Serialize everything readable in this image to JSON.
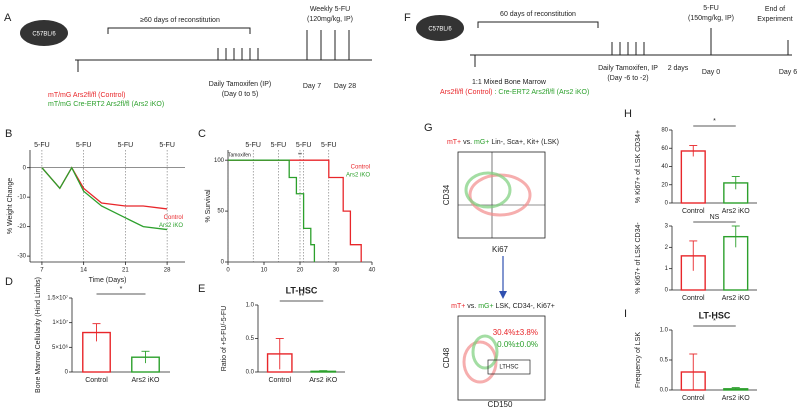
{
  "diagrams": {
    "A": {
      "letter": "A",
      "mouse": "C57BL/6",
      "reconstitution": "≥60 days of reconstitution",
      "fu_title": "Weekly 5-FU",
      "fu_dose": "(120mg/kg, IP)",
      "tamoxifen": "Daily Tamoxifen (IP)",
      "tamoxifen_days": "(Day 0 to 5)",
      "day_a": "Day 7",
      "day_b": "Day 28",
      "control": "mT/mG Ars2fl/fl (Control)",
      "ko": "mT/mG Cre-ERT2 Ars2fl/fl (Ars2 iKO)"
    },
    "F": {
      "letter": "F",
      "mouse": "C57BL/6",
      "reconstitution": "60 days of reconstitution",
      "fu_title": "5-FU",
      "fu_dose": "(150mg/kg, IP)",
      "end_a": "End of",
      "end_b": "Experiment",
      "interval": "2 days",
      "mix": "1:1 Mixed  Bone Marrow",
      "tamoxifen": "Daily Tamoxifen, IP",
      "tamoxifen_days": "(Day -6 to -2)",
      "day_a": "Day 0",
      "day_b": "Day 6",
      "control": "Ars2fl/fl (Control)",
      "ko": ": Cre-ERT2 Ars2fl/fl (Ars2 iKO)"
    },
    "G": {
      "letter": "G",
      "top_a": "mT+",
      "top_b": " vs. ",
      "top_c": "mG+",
      "top_d": " Lin-, Sca+, Kit+ (LSK)",
      "top_y": "CD34",
      "top_x": "Ki67",
      "bottom_a": "mT+",
      "bottom_b": " vs. ",
      "bottom_c": "mG+",
      "bottom_d": " LSK, CD34-, Ki67+",
      "gate": "LTHSC",
      "stat_control": "30.4%±3.8%",
      "stat_ko": "0.0%±0.0%",
      "bottom_y": "CD48",
      "bottom_x": "CD150"
    }
  },
  "chart_data": [
    {
      "type": "line",
      "panel": "B",
      "y_label": "% Weight Change",
      "x_label": "Time (Days)",
      "xlim": [
        5,
        31
      ],
      "xticks": [
        7,
        14,
        21,
        28
      ],
      "ylim": [
        -32,
        6
      ],
      "yticks": [
        0,
        -10,
        -20,
        -30
      ],
      "annotations": [
        {
          "text": "5-FU",
          "x": 7
        },
        {
          "text": "5-FU",
          "x": 14
        },
        {
          "text": "5-FU",
          "x": 21
        },
        {
          "text": "5-FU",
          "x": 28
        }
      ],
      "series": [
        {
          "name": "Control",
          "color": "#e8262a",
          "x": [
            7,
            10,
            12,
            14,
            17,
            21,
            24,
            28
          ],
          "values": [
            0,
            -7,
            0,
            -7,
            -12,
            -13,
            -13,
            -14
          ]
        },
        {
          "name": "Ars2 iKO",
          "color": "#2ca02c",
          "x": [
            7,
            10,
            12,
            14,
            17,
            21,
            24,
            28
          ],
          "values": [
            0,
            -7,
            0,
            -8,
            -13,
            -17,
            -20,
            -21
          ]
        }
      ]
    },
    {
      "type": "line",
      "panel": "C",
      "y_label": "% Survival",
      "xlim": [
        0,
        40
      ],
      "xticks": [
        0,
        10,
        20,
        30,
        40
      ],
      "ylim": [
        0,
        110
      ],
      "yticks": [
        0,
        50,
        100
      ],
      "annotations": [
        {
          "text": "5-FU",
          "x": 7
        },
        {
          "text": "5-FU",
          "x": 14
        },
        {
          "text": "5-FU",
          "x": 21
        },
        {
          "text": "5-FU",
          "x": 28
        },
        {
          "text": "Tamoxifen",
          "x": 0
        },
        {
          "text": "**",
          "x": 20
        }
      ],
      "series": [
        {
          "name": "Control",
          "color": "#e8262a",
          "x": [
            0,
            28,
            28,
            32,
            32,
            34,
            34,
            37,
            37
          ],
          "values": [
            100,
            100,
            83,
            83,
            50,
            50,
            17,
            17,
            0
          ]
        },
        {
          "name": "Ars2 iKO",
          "color": "#2ca02c",
          "x": [
            0,
            17,
            17,
            19,
            19,
            21,
            21,
            23,
            23,
            24,
            24
          ],
          "values": [
            100,
            100,
            83,
            83,
            67,
            67,
            33,
            33,
            17,
            17,
            0
          ]
        }
      ]
    },
    {
      "type": "bar",
      "panel": "D",
      "y_label": "Bone Marrow Cellularity (Hind Limbs)",
      "categories": [
        "Control",
        "Ars2 iKO"
      ],
      "values": [
        8000000,
        3000000
      ],
      "errors": [
        1800000,
        1200000
      ],
      "colors": [
        "#e8262a",
        "#2ca02c"
      ],
      "annotation": "*",
      "ylim": [
        0,
        15000000
      ],
      "yticks": [
        {
          "value": 0,
          "label": "0"
        },
        {
          "value": 5000000,
          "label": "5×10⁶"
        },
        {
          "value": 10000000,
          "label": "1×10⁷"
        },
        {
          "value": 15000000,
          "label": "1.5×10⁷"
        }
      ]
    },
    {
      "type": "bar",
      "panel": "E",
      "title": "LT-HSC",
      "y_label": "Ratio of +5-FU/-5-FU",
      "categories": [
        "Control",
        "Ars2 iKO"
      ],
      "values": [
        0.27,
        0.01
      ],
      "errors": [
        0.23,
        0.01
      ],
      "colors": [
        "#e8262a",
        "#2ca02c"
      ],
      "annotation": "**",
      "ylim": [
        0,
        1
      ],
      "yticks": [
        {
          "value": 0,
          "label": "0.0"
        },
        0.5,
        {
          "value": 1,
          "label": "1.0"
        }
      ]
    },
    {
      "type": "bar",
      "panel": "H",
      "y_label": "% Ki67+ of LSK CD34+",
      "categories": [
        "Control",
        "Ars2 iKO"
      ],
      "values": [
        57,
        22
      ],
      "errors": [
        6,
        7
      ],
      "colors": [
        "#e8262a",
        "#2ca02c"
      ],
      "annotation": "*",
      "ylim": [
        0,
        80
      ],
      "yticks": [
        0,
        20,
        40,
        60,
        80
      ]
    },
    {
      "type": "bar",
      "y_label": "% Ki67+ of LSK CD34-",
      "categories": [
        "Control",
        "Ars2 iKO"
      ],
      "values": [
        1.6,
        2.5
      ],
      "errors": [
        0.7,
        0.5
      ],
      "colors": [
        "#e8262a",
        "#2ca02c"
      ],
      "annotation": "NS",
      "ylim": [
        0,
        3
      ],
      "yticks": [
        0,
        1,
        2,
        3
      ]
    },
    {
      "type": "bar",
      "panel": "I",
      "title": "LT-HSC",
      "y_label": "Frequency of LSK",
      "categories": [
        "Control",
        "Ars2 iKO"
      ],
      "values": [
        0.3,
        0.02
      ],
      "errors": [
        0.3,
        0.02
      ],
      "colors": [
        "#e8262a",
        "#2ca02c"
      ],
      "annotation": "*",
      "ylim": [
        0,
        1
      ],
      "yticks": [
        {
          "value": 0,
          "label": "0.0"
        },
        0.5,
        {
          "value": 1,
          "label": "1.0"
        }
      ]
    }
  ]
}
